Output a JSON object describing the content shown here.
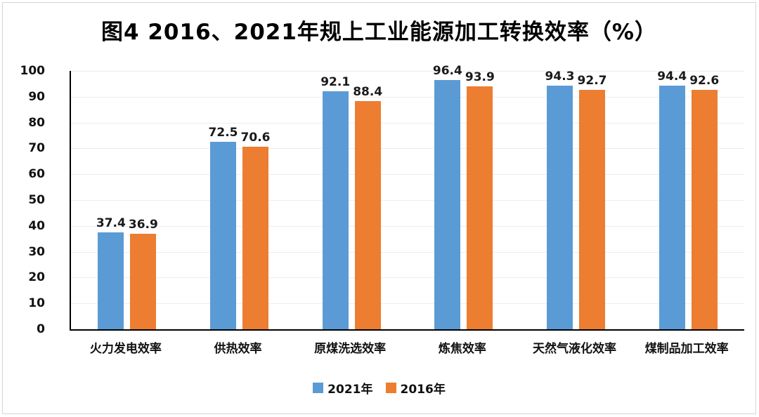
{
  "title": "图4 2016、2021年规上工业能源加工转换效率（%）",
  "colors": {
    "series_2021": "#5B9BD5",
    "series_2016": "#ED7D31",
    "gridline": "#EDEDED",
    "axis": "#000000",
    "frame_border": "#D6D6D6",
    "text": "#111111"
  },
  "chart_data": {
    "type": "bar",
    "title": "图4 2016、2021年规上工业能源加工转换效率（%）",
    "categories": [
      "火力发电效率",
      "供热效率",
      "原煤洗选效率",
      "炼焦效率",
      "天然气液化效率",
      "煤制品加工效率"
    ],
    "series": [
      {
        "name": "2021年",
        "color": "#5B9BD5",
        "values": [
          37.4,
          72.5,
          92.1,
          96.4,
          94.3,
          94.4
        ]
      },
      {
        "name": "2016年",
        "color": "#ED7D31",
        "values": [
          36.9,
          70.6,
          88.4,
          93.9,
          92.7,
          92.6
        ]
      }
    ],
    "xlabel": "",
    "ylabel": "",
    "ylim": [
      0,
      100
    ],
    "yticks": [
      0,
      10,
      20,
      30,
      40,
      50,
      60,
      70,
      80,
      90,
      100
    ],
    "grid": true,
    "data_labels": true,
    "legend_position": "bottom"
  }
}
